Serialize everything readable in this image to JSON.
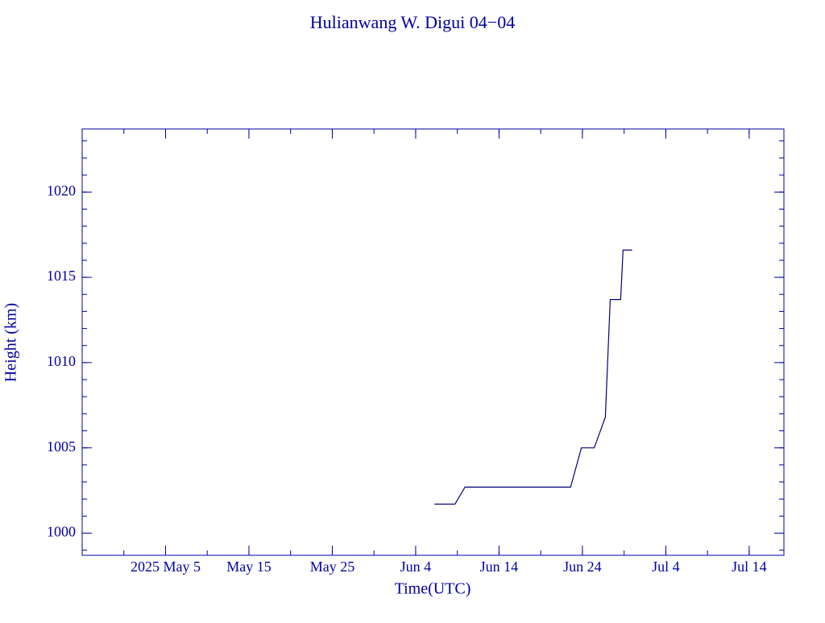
{
  "chart_data": {
    "type": "line",
    "title": "Hulianwang W. Digui 04−04",
    "x_label": "Time(UTC)",
    "y_label": "Height (km)",
    "x": [
      "2025-06-06T06:00Z",
      "2025-06-08T17:00Z",
      "2025-06-09T22:00Z",
      "2025-06-22T14:00Z",
      "2025-06-23T21:00Z",
      "2025-06-25T10:00Z",
      "2025-06-26T18:00Z",
      "2025-06-27T08:00Z",
      "2025-06-28T14:00Z",
      "2025-06-28T21:00Z",
      "2025-06-29T23:00Z"
    ],
    "series": [
      {
        "color": "#000080",
        "values": [
          1001.7,
          1001.7,
          1002.7,
          1002.7,
          1005.0,
          1005.0,
          1006.8,
          1013.7,
          1013.7,
          1016.6,
          1016.6
        ]
      }
    ],
    "xlim": [
      "2025-04-25T00:00Z",
      "2025-07-18T04:00Z"
    ],
    "xticks": [
      {
        "value": "2025-05-05T00:00Z",
        "label": "2025 May  5"
      },
      {
        "value": "2025-05-15T00:00Z",
        "label": "May 15"
      },
      {
        "value": "2025-05-25T00:00Z",
        "label": "May 25"
      },
      {
        "value": "2025-06-04T00:00Z",
        "label": "Jun  4"
      },
      {
        "value": "2025-06-14T00:00Z",
        "label": "Jun 14"
      },
      {
        "value": "2025-06-24T00:00Z",
        "label": "Jun 24"
      },
      {
        "value": "2025-07-04T00:00Z",
        "label": "Jul  4"
      },
      {
        "value": "2025-07-14T00:00Z",
        "label": "Jul 14"
      }
    ],
    "ylim": [
      998.7,
      1023.7
    ],
    "yticks": [
      1000,
      1005,
      1010,
      1015,
      1020
    ],
    "grid": false
  }
}
